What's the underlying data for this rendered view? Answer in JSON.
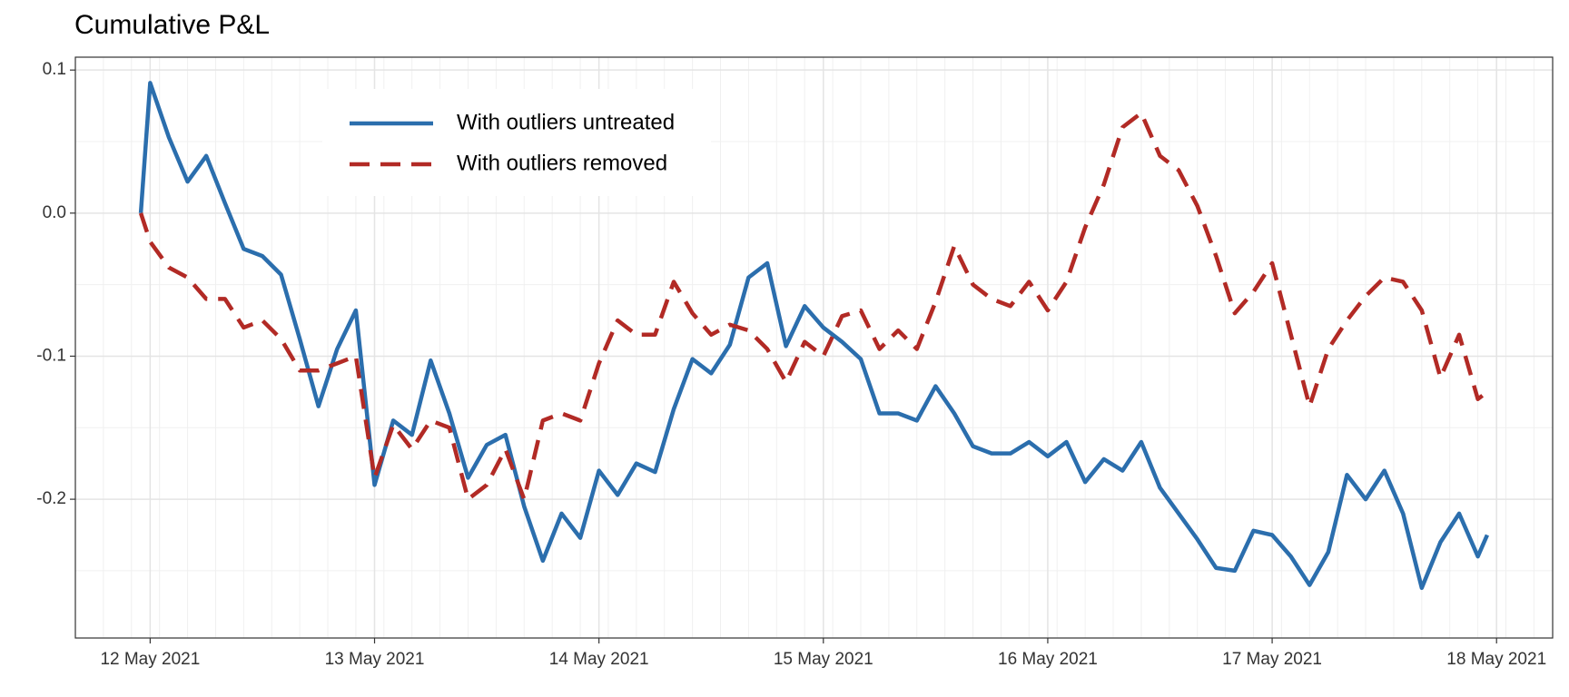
{
  "chart_data": {
    "type": "line",
    "title": "Cumulative P&L",
    "x": [
      "2021-05-11T23:00",
      "2021-05-12T00:00",
      "2021-05-12T02:00",
      "2021-05-12T04:00",
      "2021-05-12T06:00",
      "2021-05-12T08:00",
      "2021-05-12T10:00",
      "2021-05-12T12:00",
      "2021-05-12T14:00",
      "2021-05-12T16:00",
      "2021-05-12T18:00",
      "2021-05-12T20:00",
      "2021-05-12T22:00",
      "2021-05-13T00:00",
      "2021-05-13T02:00",
      "2021-05-13T04:00",
      "2021-05-13T06:00",
      "2021-05-13T08:00",
      "2021-05-13T10:00",
      "2021-05-13T12:00",
      "2021-05-13T14:00",
      "2021-05-13T16:00",
      "2021-05-13T18:00",
      "2021-05-13T20:00",
      "2021-05-13T22:00",
      "2021-05-14T00:00",
      "2021-05-14T02:00",
      "2021-05-14T04:00",
      "2021-05-14T06:00",
      "2021-05-14T08:00",
      "2021-05-14T10:00",
      "2021-05-14T12:00",
      "2021-05-14T14:00",
      "2021-05-14T16:00",
      "2021-05-14T18:00",
      "2021-05-14T20:00",
      "2021-05-14T22:00",
      "2021-05-15T00:00",
      "2021-05-15T02:00",
      "2021-05-15T04:00",
      "2021-05-15T06:00",
      "2021-05-15T08:00",
      "2021-05-15T10:00",
      "2021-05-15T12:00",
      "2021-05-15T14:00",
      "2021-05-15T16:00",
      "2021-05-15T18:00",
      "2021-05-15T20:00",
      "2021-05-15T22:00",
      "2021-05-16T00:00",
      "2021-05-16T02:00",
      "2021-05-16T04:00",
      "2021-05-16T06:00",
      "2021-05-16T08:00",
      "2021-05-16T10:00",
      "2021-05-16T12:00",
      "2021-05-16T14:00",
      "2021-05-16T16:00",
      "2021-05-16T18:00",
      "2021-05-16T20:00",
      "2021-05-16T22:00",
      "2021-05-17T00:00",
      "2021-05-17T02:00",
      "2021-05-17T04:00",
      "2021-05-17T06:00",
      "2021-05-17T08:00",
      "2021-05-17T10:00",
      "2021-05-17T12:00",
      "2021-05-17T14:00",
      "2021-05-17T16:00",
      "2021-05-17T18:00",
      "2021-05-17T20:00",
      "2021-05-17T22:00",
      "2021-05-17T23:00"
    ],
    "series": [
      {
        "name": "With outliers untreated",
        "color": "#2b6ead",
        "line_style": "solid",
        "values": [
          0.0,
          0.091,
          0.053,
          0.022,
          0.04,
          0.007,
          -0.025,
          -0.03,
          -0.043,
          -0.088,
          -0.135,
          -0.095,
          -0.068,
          -0.19,
          -0.145,
          -0.155,
          -0.103,
          -0.14,
          -0.185,
          -0.162,
          -0.155,
          -0.205,
          -0.243,
          -0.21,
          -0.227,
          -0.18,
          -0.197,
          -0.175,
          -0.181,
          -0.137,
          -0.102,
          -0.112,
          -0.092,
          -0.045,
          -0.035,
          -0.093,
          -0.065,
          -0.08,
          -0.09,
          -0.102,
          -0.14,
          -0.14,
          -0.145,
          -0.121,
          -0.14,
          -0.163,
          -0.168,
          -0.168,
          -0.16,
          -0.17,
          -0.16,
          -0.188,
          -0.172,
          -0.18,
          -0.16,
          -0.192,
          -0.21,
          -0.228,
          -0.248,
          -0.25,
          -0.222,
          -0.225,
          -0.24,
          -0.26,
          -0.237,
          -0.183,
          -0.2,
          -0.18,
          -0.21,
          -0.262,
          -0.23,
          -0.21,
          -0.24,
          -0.225
        ]
      },
      {
        "name": "With outliers removed",
        "color": "#b22a25",
        "line_style": "dashed",
        "values": [
          0.0,
          -0.02,
          -0.038,
          -0.045,
          -0.06,
          -0.06,
          -0.08,
          -0.075,
          -0.088,
          -0.11,
          -0.11,
          -0.105,
          -0.1,
          -0.185,
          -0.148,
          -0.165,
          -0.145,
          -0.15,
          -0.2,
          -0.19,
          -0.165,
          -0.2,
          -0.145,
          -0.14,
          -0.145,
          -0.105,
          -0.075,
          -0.085,
          -0.085,
          -0.048,
          -0.07,
          -0.085,
          -0.078,
          -0.082,
          -0.095,
          -0.118,
          -0.09,
          -0.1,
          -0.072,
          -0.068,
          -0.095,
          -0.082,
          -0.095,
          -0.062,
          -0.023,
          -0.05,
          -0.06,
          -0.065,
          -0.048,
          -0.068,
          -0.048,
          -0.01,
          0.02,
          0.06,
          0.07,
          0.04,
          0.03,
          0.005,
          -0.03,
          -0.07,
          -0.055,
          -0.035,
          -0.085,
          -0.135,
          -0.095,
          -0.075,
          -0.058,
          -0.045,
          -0.048,
          -0.068,
          -0.115,
          -0.085,
          -0.13,
          -0.125
        ]
      }
    ],
    "xlim": [
      "2021-05-11T16:00",
      "2021-05-18T06:00"
    ],
    "xticks": [
      {
        "value": "2021-05-12T00:00",
        "label": "12 May 2021"
      },
      {
        "value": "2021-05-13T00:00",
        "label": "13 May 2021"
      },
      {
        "value": "2021-05-14T00:00",
        "label": "14 May 2021"
      },
      {
        "value": "2021-05-15T00:00",
        "label": "15 May 2021"
      },
      {
        "value": "2021-05-16T00:00",
        "label": "16 May 2021"
      },
      {
        "value": "2021-05-17T00:00",
        "label": "17 May 2021"
      },
      {
        "value": "2021-05-18T00:00",
        "label": "18 May 2021"
      }
    ],
    "ylim": [
      -0.297,
      0.109
    ],
    "yticks": [
      {
        "value": 0.1,
        "label": "0.1"
      },
      {
        "value": 0,
        "label": "0.0"
      },
      {
        "value": -0.1,
        "label": "-0.1"
      },
      {
        "value": -0.2,
        "label": "-0.2"
      }
    ],
    "grid": true,
    "legend": "top-left"
  }
}
